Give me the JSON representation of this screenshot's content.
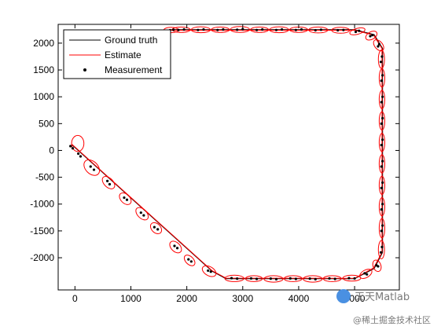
{
  "chart_data": {
    "type": "line",
    "title": "",
    "xlabel": "",
    "ylabel": "",
    "xlim": [
      -300,
      5800
    ],
    "ylim": [
      -2600,
      2350
    ],
    "xticks": [
      0,
      1000,
      2000,
      3000,
      4000,
      5000
    ],
    "yticks": [
      -2000,
      -1500,
      -1000,
      -500,
      0,
      500,
      1000,
      1500,
      2000
    ],
    "xtick_labels": [
      "0",
      "1000",
      "2000",
      "3000",
      "4000",
      "5000"
    ],
    "ytick_labels": [
      "-2000",
      "-1500",
      "-1000",
      "-500",
      "0",
      "500",
      "1000",
      "1500",
      "2000"
    ],
    "grid": false,
    "legend_position": "top-left",
    "legend": [
      {
        "label": "Ground truth",
        "style": "line",
        "color": "#000000"
      },
      {
        "label": "Estimate",
        "style": "line",
        "color": "#ff0000"
      },
      {
        "label": "Measurement",
        "style": "marker",
        "color": "#000000"
      }
    ],
    "series": [
      {
        "name": "Ground truth",
        "color": "#000000",
        "points": [
          [
            -50,
            100
          ],
          [
            2450,
            -2250
          ],
          [
            2700,
            -2390
          ],
          [
            5000,
            -2390
          ],
          [
            5350,
            -2200
          ],
          [
            5500,
            -1900
          ],
          [
            5500,
            1900
          ],
          [
            5350,
            2160
          ],
          [
            5000,
            2250
          ],
          [
            1700,
            2250
          ]
        ]
      },
      {
        "name": "Estimate",
        "color": "#ff0000",
        "points": [
          [
            -60,
            120
          ],
          [
            2450,
            -2240
          ],
          [
            2700,
            -2380
          ],
          [
            5000,
            -2385
          ],
          [
            5340,
            -2190
          ],
          [
            5490,
            -1900
          ],
          [
            5490,
            1900
          ],
          [
            5340,
            2150
          ],
          [
            5000,
            2240
          ],
          [
            1700,
            2240
          ]
        ],
        "uncertainty_ellipses": [
          [
            50,
            130,
            110,
            150,
            0
          ],
          [
            300,
            -320,
            110,
            170,
            45
          ],
          [
            600,
            -600,
            80,
            140,
            45
          ],
          [
            900,
            -900,
            80,
            130,
            45
          ],
          [
            1200,
            -1180,
            80,
            140,
            45
          ],
          [
            1450,
            -1450,
            80,
            120,
            45
          ],
          [
            1800,
            -1800,
            80,
            130,
            45
          ],
          [
            2050,
            -2050,
            70,
            120,
            45
          ],
          [
            2400,
            -2250,
            80,
            140,
            60
          ],
          [
            2850,
            -2385,
            170,
            60,
            0
          ],
          [
            3200,
            -2390,
            150,
            55,
            0
          ],
          [
            3550,
            -2395,
            170,
            60,
            0
          ],
          [
            3900,
            -2390,
            160,
            55,
            0
          ],
          [
            4250,
            -2395,
            170,
            60,
            0
          ],
          [
            4600,
            -2390,
            160,
            55,
            0
          ],
          [
            4950,
            -2380,
            160,
            55,
            0
          ],
          [
            5200,
            -2300,
            120,
            70,
            30
          ],
          [
            5400,
            -2150,
            70,
            110,
            20
          ],
          [
            5480,
            -1850,
            55,
            170,
            0
          ],
          [
            5490,
            -1450,
            50,
            180,
            0
          ],
          [
            5490,
            -1050,
            50,
            170,
            0
          ],
          [
            5490,
            -650,
            50,
            170,
            0
          ],
          [
            5490,
            -250,
            50,
            170,
            0
          ],
          [
            5490,
            150,
            50,
            170,
            0
          ],
          [
            5490,
            550,
            50,
            170,
            0
          ],
          [
            5490,
            950,
            50,
            170,
            0
          ],
          [
            5490,
            1350,
            50,
            170,
            0
          ],
          [
            5480,
            1700,
            55,
            170,
            0
          ],
          [
            5430,
            1960,
            70,
            120,
            40
          ],
          [
            5300,
            2140,
            110,
            70,
            30
          ],
          [
            5050,
            2220,
            140,
            55,
            15
          ],
          [
            4750,
            2240,
            160,
            55,
            0
          ],
          [
            4350,
            2245,
            170,
            55,
            0
          ],
          [
            4000,
            2250,
            160,
            50,
            0
          ],
          [
            3650,
            2250,
            170,
            55,
            0
          ],
          [
            3300,
            2250,
            160,
            50,
            0
          ],
          [
            2950,
            2255,
            170,
            55,
            0
          ],
          [
            2600,
            2250,
            160,
            50,
            0
          ],
          [
            2250,
            2250,
            170,
            55,
            0
          ],
          [
            1900,
            2250,
            160,
            50,
            0
          ],
          [
            1720,
            2245,
            130,
            50,
            0
          ]
        ]
      },
      {
        "name": "Measurement",
        "color": "#000000",
        "style": "markers",
        "points": [
          [
            -80,
            80
          ],
          [
            -40,
            40
          ],
          [
            60,
            -60
          ],
          [
            100,
            -110
          ],
          [
            280,
            -300
          ],
          [
            340,
            -360
          ],
          [
            580,
            -570
          ],
          [
            620,
            -630
          ],
          [
            880,
            -880
          ],
          [
            930,
            -920
          ],
          [
            1180,
            -1160
          ],
          [
            1230,
            -1210
          ],
          [
            1420,
            -1430
          ],
          [
            1480,
            -1470
          ],
          [
            1780,
            -1780
          ],
          [
            1830,
            -1820
          ],
          [
            2030,
            -2030
          ],
          [
            2080,
            -2070
          ],
          [
            2380,
            -2240
          ],
          [
            2430,
            -2260
          ],
          [
            2800,
            -2380
          ],
          [
            2900,
            -2390
          ],
          [
            3150,
            -2385
          ],
          [
            3250,
            -2395
          ],
          [
            3500,
            -2390
          ],
          [
            3600,
            -2400
          ],
          [
            3850,
            -2385
          ],
          [
            3950,
            -2395
          ],
          [
            4200,
            -2390
          ],
          [
            4300,
            -2400
          ],
          [
            4550,
            -2385
          ],
          [
            4650,
            -2395
          ],
          [
            4900,
            -2380
          ],
          [
            5000,
            -2385
          ],
          [
            5180,
            -2290
          ],
          [
            5220,
            -2310
          ],
          [
            5390,
            -2140
          ],
          [
            5420,
            -2160
          ],
          [
            5470,
            -1900
          ],
          [
            5490,
            -1800
          ],
          [
            5480,
            -1500
          ],
          [
            5500,
            -1400
          ],
          [
            5480,
            -1100
          ],
          [
            5500,
            -1000
          ],
          [
            5480,
            -700
          ],
          [
            5500,
            -600
          ],
          [
            5480,
            -300
          ],
          [
            5500,
            -200
          ],
          [
            5480,
            100
          ],
          [
            5500,
            200
          ],
          [
            5480,
            500
          ],
          [
            5500,
            600
          ],
          [
            5480,
            900
          ],
          [
            5500,
            1000
          ],
          [
            5480,
            1300
          ],
          [
            5500,
            1400
          ],
          [
            5470,
            1650
          ],
          [
            5490,
            1750
          ],
          [
            5420,
            1940
          ],
          [
            5440,
            1980
          ],
          [
            5280,
            2130
          ],
          [
            5320,
            2150
          ],
          [
            5020,
            2210
          ],
          [
            5080,
            2230
          ],
          [
            4700,
            2240
          ],
          [
            4800,
            2245
          ],
          [
            4300,
            2240
          ],
          [
            4400,
            2250
          ],
          [
            3950,
            2245
          ],
          [
            4050,
            2255
          ],
          [
            3600,
            2245
          ],
          [
            3700,
            2255
          ],
          [
            3250,
            2245
          ],
          [
            3350,
            2255
          ],
          [
            2900,
            2250
          ],
          [
            3000,
            2260
          ],
          [
            2550,
            2245
          ],
          [
            2650,
            2255
          ],
          [
            2200,
            2245
          ],
          [
            2300,
            2255
          ],
          [
            1850,
            2245
          ],
          [
            1950,
            2255
          ],
          [
            1700,
            2240
          ],
          [
            1760,
            2250
          ]
        ]
      }
    ]
  },
  "watermark": {
    "primary": "天天Matlab",
    "secondary": "@稀土掘金技术社区",
    "badge_color": "#4a90e2"
  }
}
